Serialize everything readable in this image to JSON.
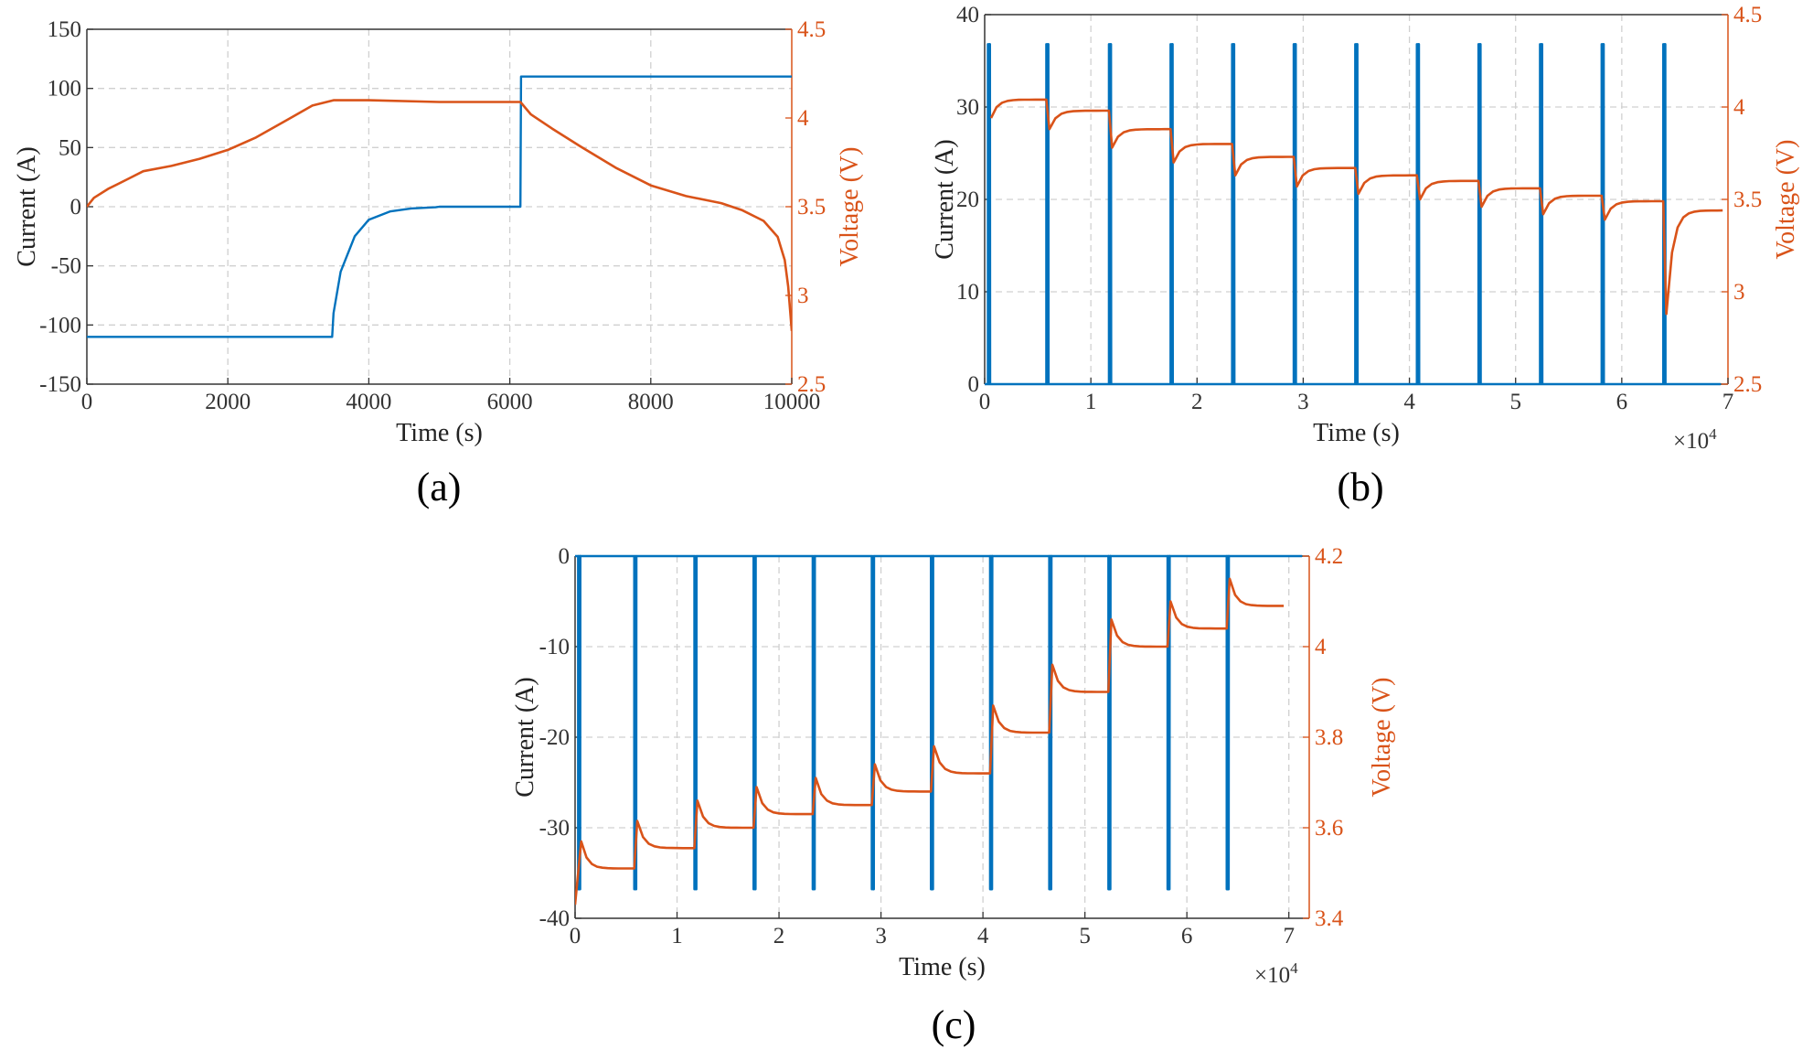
{
  "chart_data": [
    {
      "id": "a",
      "type": "line",
      "panel_label": "(a)",
      "xlabel": "Time (s)",
      "ylabel": "Current (A)",
      "y2label": "Voltage (V)",
      "x_exponent": "",
      "xlim": [
        0,
        10000
      ],
      "ylim": [
        -150,
        150
      ],
      "y2lim": [
        2.5,
        4.5
      ],
      "xticks": [
        0,
        2000,
        4000,
        6000,
        8000,
        10000
      ],
      "xtick_labels": [
        "0",
        "2000",
        "4000",
        "6000",
        "8000",
        "10000"
      ],
      "yticks": [
        -150,
        -100,
        -50,
        0,
        50,
        100,
        150
      ],
      "ytick_labels": [
        "-150",
        "-100",
        "-50",
        "0",
        "50",
        "100",
        "150"
      ],
      "y2ticks": [
        2.5,
        3,
        3.5,
        4,
        4.5
      ],
      "y2tick_labels": [
        "2.5",
        "3",
        "3.5",
        "4",
        "4.5"
      ],
      "grid": true,
      "colors": {
        "current": "#0072BD",
        "voltage": "#D95319",
        "axis2": "#D95319"
      },
      "series": [
        {
          "axis": "left",
          "color": "#0072BD",
          "x": [
            0,
            3480,
            3500,
            3600,
            3800,
            4000,
            4300,
            4600,
            4950,
            5000,
            6150,
            6160,
            6170,
            10000
          ],
          "y": [
            -110,
            -110,
            -90,
            -55,
            -25,
            -11,
            -4,
            -1.5,
            -0.5,
            0,
            0,
            110,
            110,
            110
          ]
        },
        {
          "axis": "right",
          "color": "#D95319",
          "x": [
            0,
            100,
            300,
            600,
            800,
            1200,
            1600,
            2000,
            2400,
            2800,
            3200,
            3500,
            4000,
            5000,
            6000,
            6150,
            6300,
            6600,
            7000,
            7500,
            8000,
            8500,
            9000,
            9300,
            9600,
            9800,
            9900,
            9950,
            10000
          ],
          "y": [
            3.5,
            3.55,
            3.6,
            3.66,
            3.7,
            3.73,
            3.77,
            3.82,
            3.89,
            3.98,
            4.07,
            4.1,
            4.1,
            4.09,
            4.09,
            4.09,
            4.02,
            3.94,
            3.84,
            3.72,
            3.62,
            3.56,
            3.52,
            3.48,
            3.42,
            3.33,
            3.2,
            3.05,
            2.8
          ]
        }
      ]
    },
    {
      "id": "b",
      "type": "line",
      "panel_label": "(b)",
      "xlabel": "Time (s)",
      "ylabel": "Current (A)",
      "y2label": "Voltage (V)",
      "x_exponent": "×10",
      "x_exponent_power": "4",
      "xlim": [
        0,
        7
      ],
      "ylim": [
        0,
        40
      ],
      "y2lim": [
        2.5,
        4.5
      ],
      "xticks": [
        0,
        1,
        2,
        3,
        4,
        5,
        6,
        7
      ],
      "xtick_labels": [
        "0",
        "1",
        "2",
        "3",
        "4",
        "5",
        "6",
        "7"
      ],
      "yticks": [
        0,
        10,
        20,
        30,
        40
      ],
      "ytick_labels": [
        "0",
        "10",
        "20",
        "30",
        "40"
      ],
      "y2ticks": [
        2.5,
        3,
        3.5,
        4,
        4.5
      ],
      "y2tick_labels": [
        "2.5",
        "3",
        "3.5",
        "4",
        "4.5"
      ],
      "grid": true,
      "colors": {
        "current": "#0072BD",
        "voltage": "#D95319",
        "axis2": "#D95319"
      },
      "pulse_current": 36.8,
      "pulse_times": [
        0.03,
        0.58,
        1.17,
        1.75,
        2.33,
        2.91,
        3.49,
        4.07,
        4.65,
        5.23,
        5.81,
        6.39
      ],
      "voltage_steps": [
        4.04,
        3.98,
        3.88,
        3.8,
        3.73,
        3.67,
        3.63,
        3.6,
        3.56,
        3.52,
        3.49,
        3.44
      ],
      "voltage_transient": -0.1,
      "last_dip": 2.88
    },
    {
      "id": "c",
      "type": "line",
      "panel_label": "(c)",
      "xlabel": "Time (s)",
      "ylabel": "Current (A)",
      "y2label": "Voltage (V)",
      "x_exponent": "×10",
      "x_exponent_power": "4",
      "xlim": [
        0,
        7.2
      ],
      "ylim": [
        -40,
        0
      ],
      "y2lim": [
        3.4,
        4.2
      ],
      "xticks": [
        0,
        1,
        2,
        3,
        4,
        5,
        6,
        7
      ],
      "xtick_labels": [
        "0",
        "1",
        "2",
        "3",
        "4",
        "5",
        "6",
        "7"
      ],
      "yticks": [
        -40,
        -30,
        -20,
        -10,
        0
      ],
      "ytick_labels": [
        "-40",
        "-30",
        "-20",
        "-10",
        "0"
      ],
      "y2ticks": [
        3.4,
        3.6,
        3.8,
        4,
        4.2
      ],
      "y2tick_labels": [
        "3.4",
        "3.6",
        "3.8",
        "4",
        "4.2"
      ],
      "grid": true,
      "colors": {
        "current": "#0072BD",
        "voltage": "#D95319",
        "axis2": "#D95319"
      },
      "pulse_current": -36.8,
      "pulse_times": [
        0.03,
        0.58,
        1.17,
        1.75,
        2.33,
        2.91,
        3.49,
        4.07,
        4.65,
        5.23,
        5.81,
        6.39
      ],
      "voltage_steps": [
        3.51,
        3.555,
        3.6,
        3.63,
        3.65,
        3.68,
        3.72,
        3.81,
        3.9,
        4.0,
        4.04,
        4.09
      ],
      "voltage_transient": 0.06,
      "first_dip": 3.43
    }
  ]
}
